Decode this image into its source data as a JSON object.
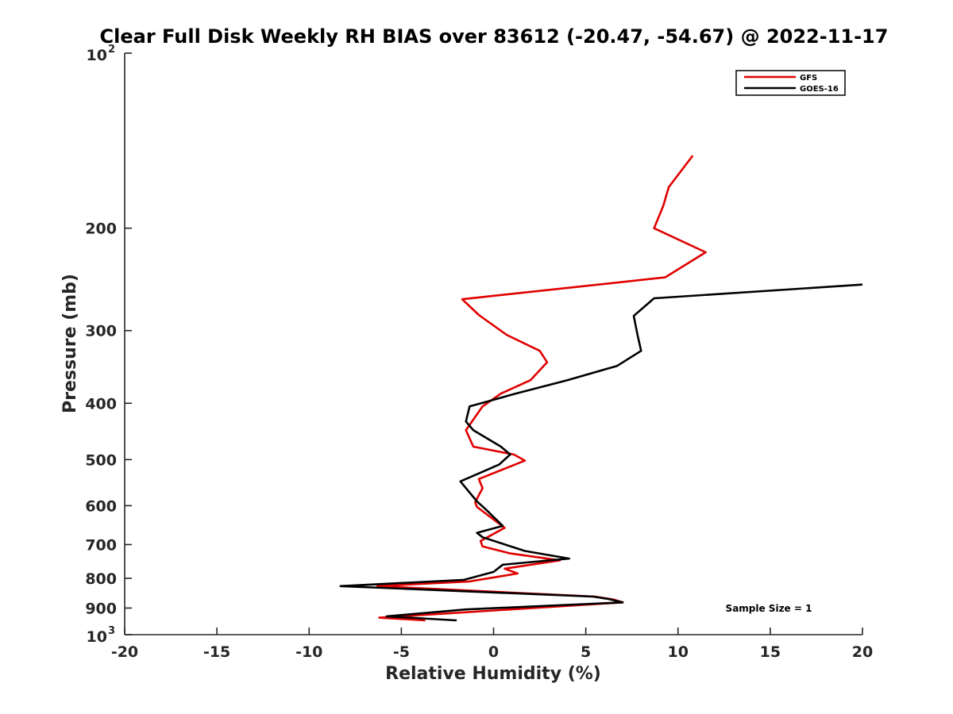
{
  "chart_data": {
    "type": "line",
    "title": "Clear Full Disk Weekly RH BIAS over 83612 (-20.47, -54.67) @ 2022-11-17",
    "xlabel": "Relative Humidity (%)",
    "ylabel": "Pressure (mb)",
    "xlim": [
      -20,
      20
    ],
    "ylim": [
      100,
      1000
    ],
    "y_scale": "log",
    "y_reversed": true,
    "grid": false,
    "legend_position": "top-right",
    "x_ticks": [
      -20,
      -15,
      -10,
      -5,
      0,
      5,
      10,
      15,
      20
    ],
    "y_ticks": [
      {
        "value": 100,
        "base": "10",
        "exp": "2"
      },
      {
        "value": 200,
        "label": "200"
      },
      {
        "value": 300,
        "label": "300"
      },
      {
        "value": 400,
        "label": "400"
      },
      {
        "value": 500,
        "label": "500"
      },
      {
        "value": 600,
        "label": "600"
      },
      {
        "value": 700,
        "label": "700"
      },
      {
        "value": 800,
        "label": "800"
      },
      {
        "value": 900,
        "label": "900"
      },
      {
        "value": 1000,
        "base": "10",
        "exp": "3"
      }
    ],
    "annotation": "Sample Size = 1",
    "series": [
      {
        "name": "GFS",
        "color": "#e00000",
        "x": [
          10.8,
          9.5,
          9.2,
          8.7,
          11.5,
          9.3,
          -1.7,
          -0.8,
          0.7,
          2.5,
          2.9,
          2.0,
          0.4,
          -0.6,
          -1.5,
          -1.1,
          1.1,
          1.7,
          -0.8,
          -0.6,
          -1.0,
          -0.9,
          0.6,
          -0.7,
          -0.6,
          0.9,
          3.6,
          0.6,
          1.3,
          -1.3,
          -6.3,
          5.5,
          6.5,
          7.0,
          -6.2,
          -3.7
        ],
        "y": [
          150,
          170,
          183,
          200,
          220,
          243,
          265,
          282,
          305,
          325,
          340,
          365,
          385,
          405,
          445,
          475,
          490,
          502,
          540,
          560,
          592,
          603,
          655,
          690,
          705,
          725,
          745,
          770,
          785,
          810,
          825,
          860,
          870,
          880,
          935,
          945
        ]
      },
      {
        "name": "GOES-16",
        "color": "#000000",
        "x": [
          20.0,
          8.7,
          7.6,
          7.8,
          8.0,
          6.7,
          4.0,
          1.2,
          -0.3,
          -1.3,
          -1.5,
          -1.1,
          0.4,
          0.9,
          0.3,
          -1.8,
          -0.9,
          -0.4,
          0.5,
          -0.9,
          -0.6,
          1.7,
          4.1,
          0.5,
          0.0,
          -1.6,
          -8.3,
          5.4,
          6.2,
          7.0,
          -1.5,
          -5.8,
          -2.0
        ],
        "y": [
          250,
          264,
          283,
          305,
          325,
          345,
          365,
          385,
          397,
          405,
          430,
          445,
          475,
          490,
          510,
          545,
          590,
          610,
          650,
          668,
          680,
          718,
          740,
          758,
          780,
          805,
          825,
          860,
          868,
          880,
          905,
          930,
          945
        ]
      }
    ]
  }
}
